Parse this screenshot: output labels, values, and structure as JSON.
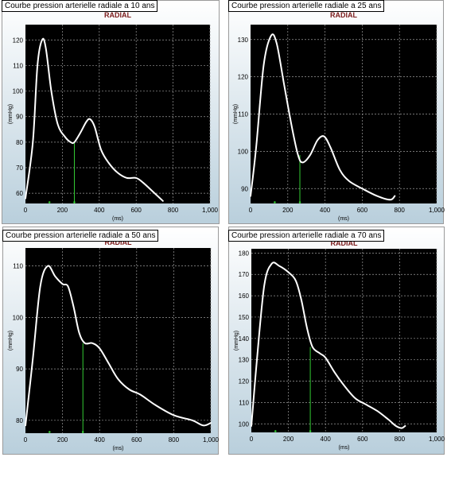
{
  "chart_data": [
    {
      "type": "line",
      "caption": "Courbe pression arterielle radiale a 10 ans",
      "title": "RADIAL",
      "xlabel": "(ms)",
      "ylabel": "(mmHg)",
      "xlim": [
        0,
        1000
      ],
      "ylim": [
        56,
        126
      ],
      "xticks": [
        0,
        200,
        400,
        600,
        800,
        1000
      ],
      "xtick_labels": [
        "0",
        "200",
        "400",
        "600",
        "800",
        "1,000"
      ],
      "yticks": [
        60,
        70,
        80,
        90,
        100,
        110,
        120
      ],
      "grid": true,
      "marker_x": 265,
      "curve": [
        [
          0,
          58
        ],
        [
          40,
          80
        ],
        [
          65,
          110
        ],
        [
          90,
          120
        ],
        [
          110,
          117
        ],
        [
          140,
          100
        ],
        [
          175,
          87
        ],
        [
          215,
          82
        ],
        [
          245,
          80
        ],
        [
          265,
          80
        ],
        [
          300,
          84
        ],
        [
          330,
          88
        ],
        [
          350,
          89
        ],
        [
          375,
          86
        ],
        [
          410,
          77
        ],
        [
          450,
          72
        ],
        [
          500,
          68
        ],
        [
          550,
          66
        ],
        [
          600,
          66
        ],
        [
          640,
          64
        ],
        [
          700,
          60
        ],
        [
          745,
          57
        ]
      ]
    },
    {
      "type": "line",
      "caption": "Courbe pression arterielle radiale a 25 ans",
      "title": "RADIAL",
      "xlabel": "(ms)",
      "ylabel": "(mmHg)",
      "xlim": [
        0,
        1000
      ],
      "ylim": [
        86,
        134
      ],
      "xticks": [
        0,
        200,
        400,
        600,
        800,
        1000
      ],
      "xtick_labels": [
        "0",
        "200",
        "400",
        "600",
        "800",
        "1,000"
      ],
      "yticks": [
        90,
        100,
        110,
        120,
        130
      ],
      "grid": true,
      "marker_x": 265,
      "curve": [
        [
          0,
          88
        ],
        [
          30,
          101
        ],
        [
          70,
          123
        ],
        [
          110,
          131
        ],
        [
          140,
          129
        ],
        [
          180,
          118
        ],
        [
          220,
          107
        ],
        [
          255,
          99
        ],
        [
          280,
          97
        ],
        [
          320,
          99
        ],
        [
          360,
          103
        ],
        [
          395,
          104
        ],
        [
          430,
          101
        ],
        [
          480,
          95
        ],
        [
          530,
          92
        ],
        [
          600,
          90
        ],
        [
          680,
          88
        ],
        [
          750,
          87
        ],
        [
          775,
          88
        ]
      ]
    },
    {
      "type": "line",
      "caption": "Courbe pression arterielle radiale a 50 ans",
      "title": "RADIAL",
      "xlabel": "(ms)",
      "ylabel": "(mmHg)",
      "xlim": [
        0,
        1000
      ],
      "ylim": [
        77.5,
        113.5
      ],
      "xticks": [
        0,
        200,
        400,
        600,
        800,
        1000
      ],
      "xtick_labels": [
        "0",
        "200",
        "400",
        "600",
        "800",
        "1,000"
      ],
      "yticks": [
        80,
        90,
        100,
        110
      ],
      "grid": true,
      "marker_x": 310,
      "curve": [
        [
          0,
          79
        ],
        [
          40,
          92
        ],
        [
          80,
          106
        ],
        [
          120,
          110
        ],
        [
          160,
          108
        ],
        [
          200,
          106.5
        ],
        [
          230,
          106
        ],
        [
          260,
          102
        ],
        [
          290,
          97
        ],
        [
          320,
          95
        ],
        [
          360,
          95
        ],
        [
          400,
          94
        ],
        [
          450,
          91
        ],
        [
          500,
          88
        ],
        [
          560,
          86
        ],
        [
          620,
          85
        ],
        [
          700,
          83
        ],
        [
          800,
          81
        ],
        [
          900,
          80
        ],
        [
          960,
          79
        ],
        [
          1000,
          79.5
        ]
      ]
    },
    {
      "type": "line",
      "caption": "Courbe pression arterielle radiale a 70 ans",
      "title": "RADIAL",
      "xlabel": "(ms)",
      "ylabel": "(mmHg)",
      "xlim": [
        0,
        1000
      ],
      "ylim": [
        96,
        182
      ],
      "xticks": [
        0,
        200,
        400,
        600,
        800,
        1000
      ],
      "xtick_labels": [
        "0",
        "200",
        "400",
        "600",
        "800",
        "1,000"
      ],
      "yticks": [
        100,
        110,
        120,
        130,
        140,
        150,
        160,
        170,
        180
      ],
      "grid": true,
      "marker_x": 318,
      "curve": [
        [
          0,
          99
        ],
        [
          30,
          130
        ],
        [
          70,
          165
        ],
        [
          110,
          175
        ],
        [
          150,
          174
        ],
        [
          200,
          171
        ],
        [
          240,
          167
        ],
        [
          270,
          158
        ],
        [
          300,
          145
        ],
        [
          330,
          136
        ],
        [
          370,
          133
        ],
        [
          400,
          131
        ],
        [
          450,
          124
        ],
        [
          500,
          118
        ],
        [
          560,
          112
        ],
        [
          620,
          109
        ],
        [
          680,
          106
        ],
        [
          740,
          102
        ],
        [
          780,
          99
        ],
        [
          810,
          98
        ],
        [
          830,
          99
        ]
      ]
    }
  ]
}
